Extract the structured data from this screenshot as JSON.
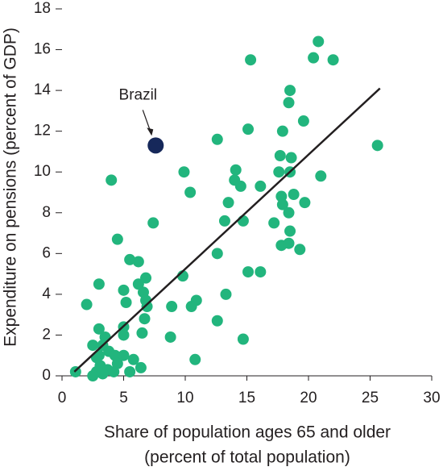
{
  "chart_data": {
    "type": "scatter",
    "xlabel": [
      "Share of population ages 65 and older",
      "(percent of total population)"
    ],
    "ylabel": "Expenditure on pensions (percent of GDP)",
    "xlim": [
      0,
      30
    ],
    "xticks": [
      0,
      5,
      10,
      15,
      20,
      25,
      30
    ],
    "ylim": [
      0,
      18
    ],
    "yticks": [
      0,
      2,
      4,
      6,
      8,
      10,
      12,
      14,
      16,
      18
    ],
    "color": "#22b57d",
    "x": [
      20.8,
      20.4,
      22,
      15.3,
      18.5,
      18.4,
      19.6,
      15.1,
      17.9,
      12.6,
      25.6,
      17.7,
      18.6,
      14.1,
      17.6,
      18.5,
      9.9,
      14,
      14.5,
      16.1,
      21,
      10.4,
      4,
      18.8,
      17.8,
      17.9,
      19.7,
      13.5,
      18.4,
      17.2,
      14.7,
      13.2,
      7.4,
      18.5,
      17.8,
      18.4,
      19.3,
      12.6,
      4.5,
      5.5,
      6.2,
      15.1,
      16.1,
      9.8,
      6.8,
      6.2,
      3,
      5,
      6.6,
      13.3,
      6.8,
      10.9,
      6.9,
      8.9,
      10.5,
      5.2,
      2,
      6.7,
      12.6,
      5,
      3,
      5,
      6.5,
      3.5,
      8.8,
      14.7,
      2.5,
      3.3,
      3.8,
      4.3,
      5,
      5.8,
      10.8,
      3,
      4.5,
      3.1,
      6.4,
      2.8,
      3.7,
      4.2,
      5.5,
      1.1,
      3.3,
      2.5,
      2.8
    ],
    "y": [
      16.4,
      15.6,
      15.5,
      15.5,
      14,
      13.4,
      12.5,
      12.1,
      12,
      11.6,
      11.3,
      10.8,
      10.7,
      10.1,
      10,
      10,
      10,
      9.6,
      9.3,
      9.3,
      9.8,
      9,
      9.6,
      8.9,
      8.8,
      8.4,
      8.5,
      8.5,
      8,
      7.5,
      7.6,
      7.6,
      7.5,
      7.1,
      6.4,
      6.5,
      6.2,
      6,
      6.7,
      5.7,
      5.6,
      5.1,
      5.1,
      4.9,
      4.8,
      4.5,
      4.5,
      4.2,
      4.1,
      4,
      3.7,
      3.7,
      3.4,
      3.4,
      3.4,
      3.6,
      3.5,
      2.8,
      2.7,
      2.4,
      2.3,
      2,
      2.1,
      1.9,
      1.9,
      1.8,
      1.5,
      1.5,
      1.2,
      1,
      1,
      0.8,
      0.8,
      1,
      0.6,
      0.5,
      0.4,
      0.2,
      0.3,
      0.2,
      0.2,
      0.2,
      0.1,
      0,
      0.9
    ],
    "highlight": {
      "label": "Brazil",
      "x": 7.6,
      "y": 11.3,
      "color": "#16285a"
    },
    "fit_line": {
      "x": [
        1,
        25.8
      ],
      "y": [
        0.2,
        14.1
      ],
      "color": "#231f20"
    }
  }
}
